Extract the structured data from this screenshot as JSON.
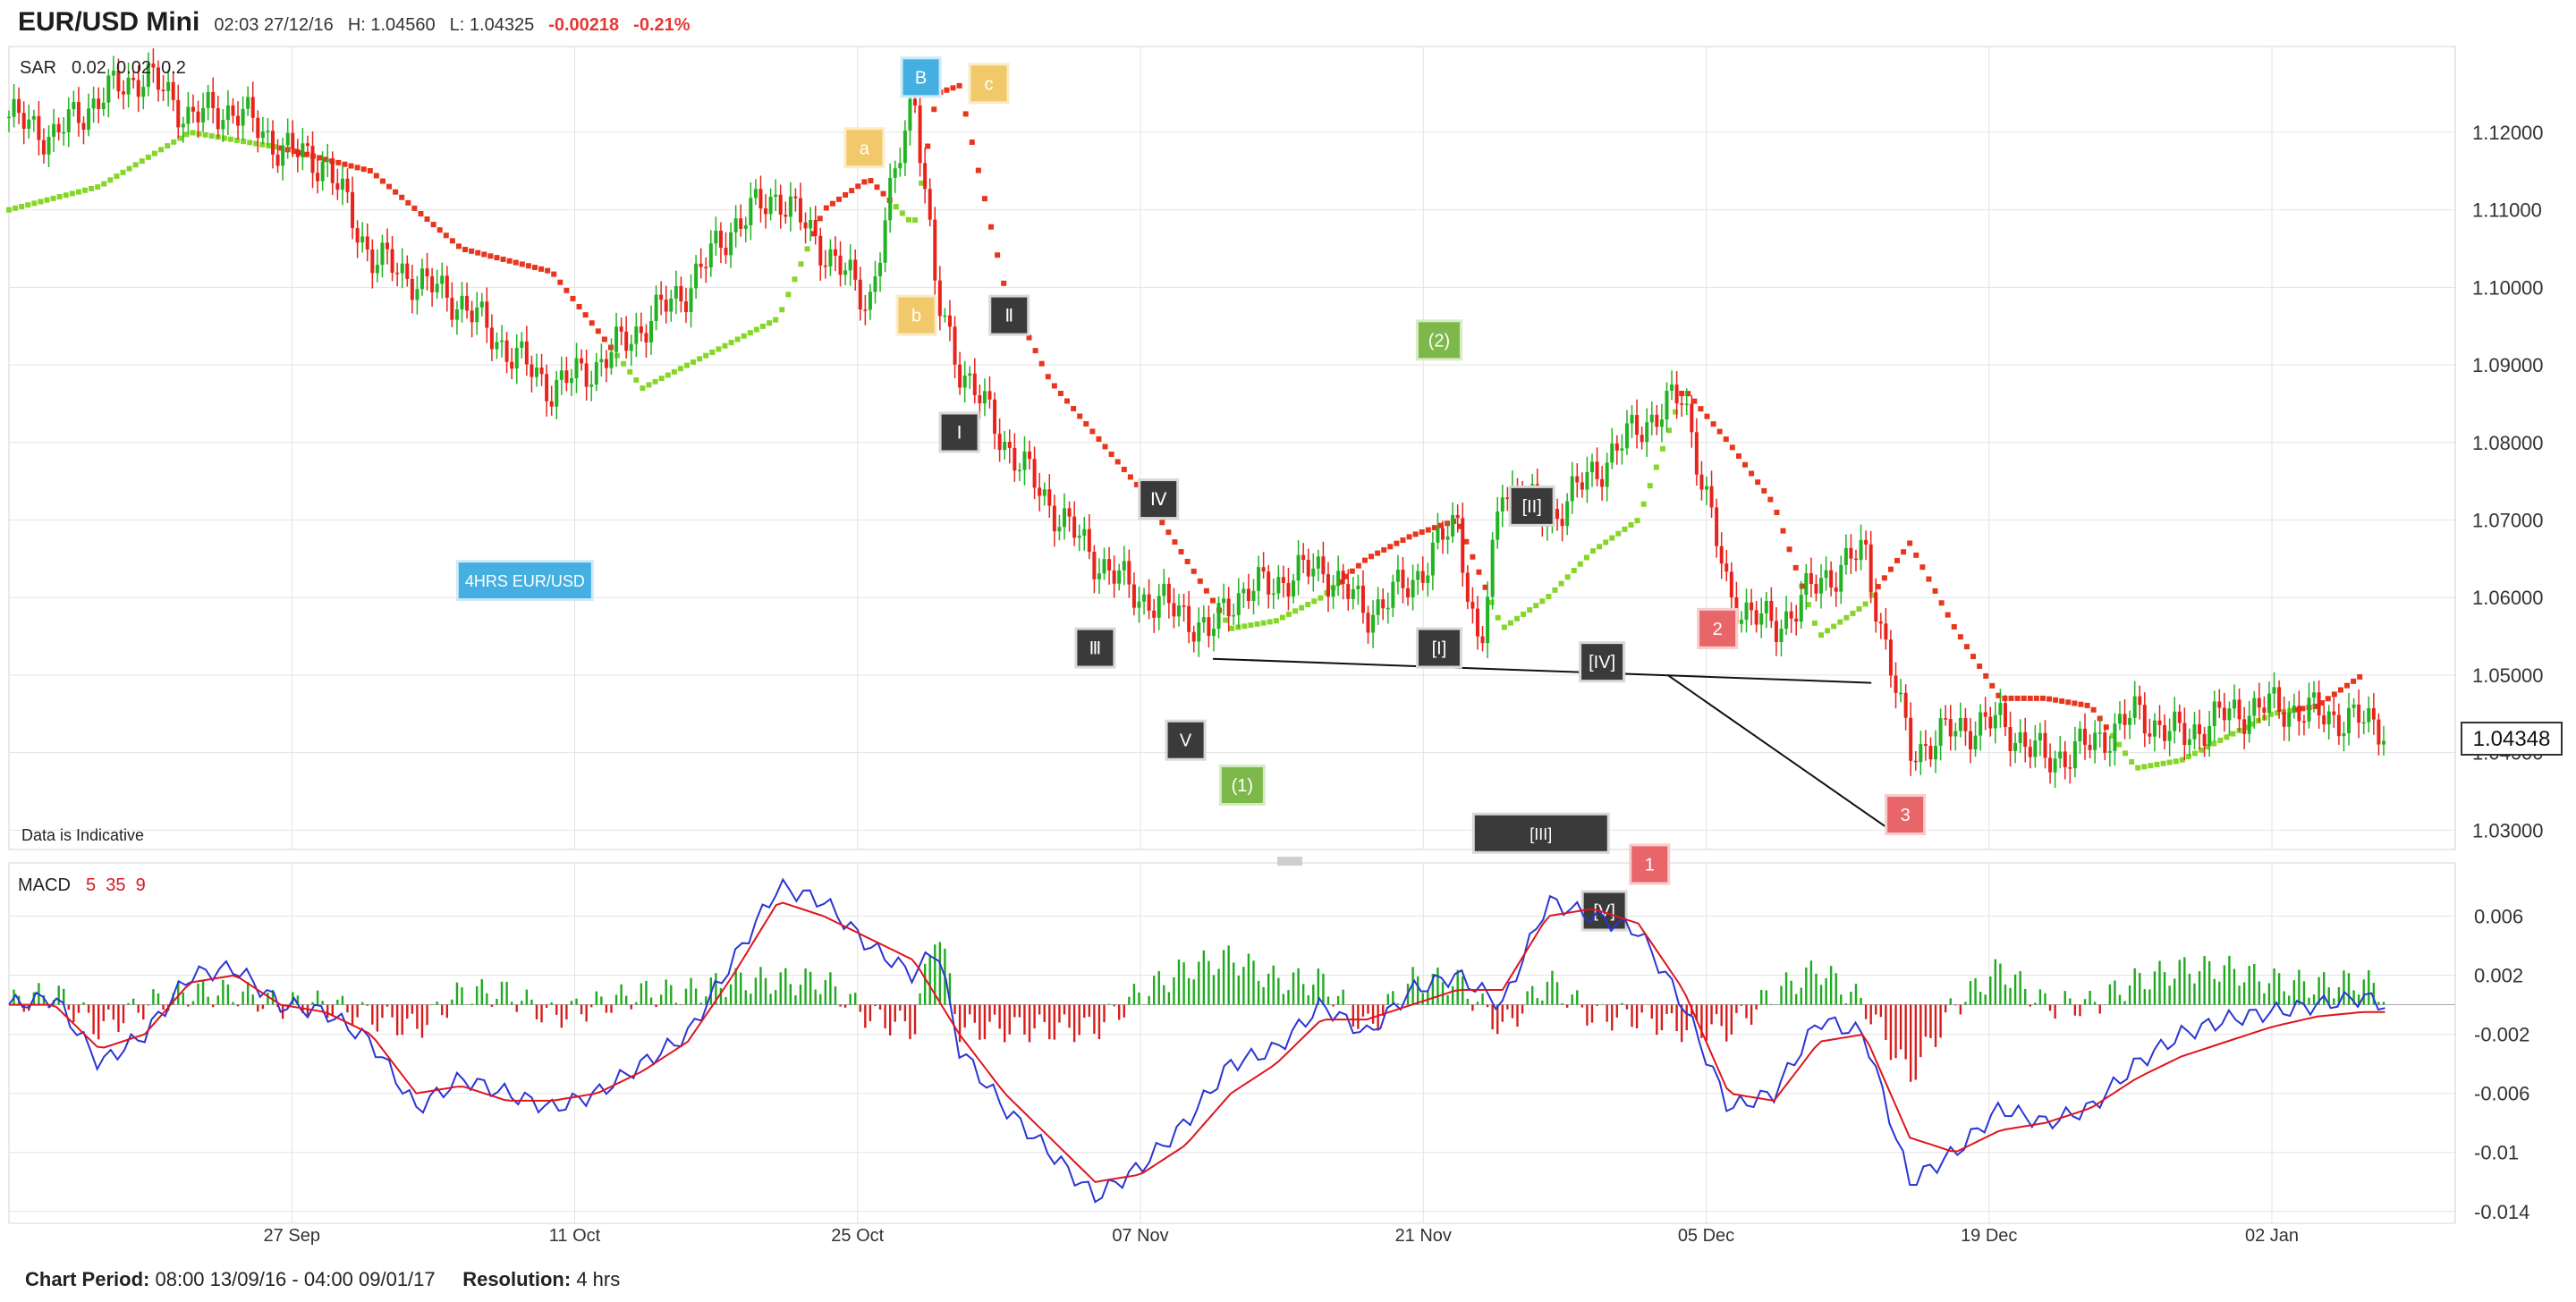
{
  "header": {
    "symbol": "EUR/USD Mini",
    "datetime": "02:03 27/12/16",
    "high": "H: 1.04560",
    "low": "L: 1.04325",
    "change": "-0.00218",
    "change_pct": "-0.21%"
  },
  "indicators": {
    "sar": {
      "name": "SAR",
      "params": "0.02  0.02  0.2"
    },
    "macd": {
      "name": "MACD",
      "params": "5  35  9"
    }
  },
  "disclaimer": "Data is Indicative",
  "price_label": "1.04348",
  "footer": {
    "period_label": "Chart Period:",
    "period_value": "08:00 13/09/16 - 04:00 09/01/17",
    "resolution_label": "Resolution:",
    "resolution_value": "4 hrs"
  },
  "colors": {
    "up": "#22b322",
    "down": "#e8231c",
    "sar_up": "#86d62a",
    "sar_down": "#e8361c",
    "macd_line": "#2b35d4",
    "signal_line": "#e0141e",
    "grid": "#e4e4e4",
    "axis_text": "#333333"
  },
  "chart_data": [
    {
      "type": "candlestick",
      "title": "EUR/USD Mini",
      "y_ticks": [
        "1.12000",
        "1.11000",
        "1.10000",
        "1.09000",
        "1.08000",
        "1.07000",
        "1.06000",
        "1.05000",
        "1.04000",
        "1.03000"
      ],
      "ylim": [
        1.0275,
        1.1306
      ],
      "x_ticks": [
        "27 Sep",
        "11 Oct",
        "25 Oct",
        "07 Nov",
        "21 Nov",
        "05 Dec",
        "19 Dec",
        "02 Jan"
      ],
      "grid": true,
      "series": [
        {
          "name": "Price (close path)",
          "x": [
            0,
            2,
            4,
            6,
            8,
            10,
            12,
            14,
            16,
            18,
            20,
            22,
            24,
            26,
            28,
            30,
            32,
            34,
            36,
            38,
            40,
            41,
            42,
            43,
            44,
            46,
            48,
            50,
            52,
            53,
            54,
            56,
            58,
            60,
            62,
            64,
            65,
            66,
            68,
            70,
            72,
            74,
            76,
            78,
            80,
            82,
            84,
            86,
            88,
            90,
            92,
            94,
            96,
            98,
            100,
            102,
            104,
            105
          ],
          "close": [
            1.122,
            1.1195,
            1.1245,
            1.1275,
            1.122,
            1.123,
            1.118,
            1.116,
            1.104,
            1.101,
            1.098,
            1.092,
            1.087,
            1.09,
            1.095,
            1.1,
            1.108,
            1.112,
            1.105,
            1.098,
            1.126,
            1.098,
            1.09,
            1.085,
            1.08,
            1.072,
            1.065,
            1.06,
            1.058,
            1.055,
            1.06,
            1.062,
            1.064,
            1.058,
            1.062,
            1.07,
            1.052,
            1.075,
            1.07,
            1.076,
            1.082,
            1.086,
            1.06,
            1.056,
            1.062,
            1.066,
            1.04,
            1.043,
            1.044,
            1.039,
            1.041,
            1.045,
            1.042,
            1.045,
            1.046,
            1.045,
            1.044,
            1.0435
          ]
        },
        {
          "name": "SAR",
          "x": [
            0,
            4,
            8,
            12,
            16,
            20,
            24,
            28,
            30,
            32,
            34,
            36,
            38,
            40,
            41,
            42,
            44,
            46,
            48,
            50,
            52,
            54,
            56,
            58,
            60,
            62,
            64,
            66,
            68,
            70,
            72,
            74,
            76,
            78,
            80,
            82,
            84,
            86,
            88,
            90,
            92,
            94,
            96,
            98,
            100,
            102,
            104
          ],
          "value": [
            1.11,
            1.113,
            1.12,
            1.118,
            1.115,
            1.105,
            1.102,
            1.087,
            1.09,
            1.093,
            1.096,
            1.11,
            1.114,
            1.108,
            1.125,
            1.126,
            1.1,
            1.088,
            1.081,
            1.074,
            1.065,
            1.056,
            1.057,
            1.06,
            1.065,
            1.068,
            1.07,
            1.056,
            1.06,
            1.066,
            1.07,
            1.087,
            1.08,
            1.072,
            1.055,
            1.059,
            1.067,
            1.056,
            1.047,
            1.047,
            1.046,
            1.038,
            1.039,
            1.042,
            1.045,
            1.046,
            1.05
          ]
        }
      ],
      "annotations": [
        {
          "label": "a",
          "x": 37.8,
          "y": 1.118,
          "style": "yellow"
        },
        {
          "label": "B",
          "x": 40.3,
          "y": 1.1271,
          "style": "blue"
        },
        {
          "label": "c",
          "x": 43.3,
          "y": 1.1263,
          "style": "yellow"
        },
        {
          "label": "b",
          "x": 40.1,
          "y": 1.0964,
          "style": "yellow"
        },
        {
          "label": "Ⅱ",
          "x": 44.2,
          "y": 1.0964,
          "style": "dark"
        },
        {
          "label": "Ⅰ",
          "x": 42.0,
          "y": 1.0813,
          "style": "dark"
        },
        {
          "label": "Ⅳ",
          "x": 50.8,
          "y": 1.0727,
          "style": "dark"
        },
        {
          "label": "Ⅲ",
          "x": 48.0,
          "y": 1.0535,
          "style": "dark"
        },
        {
          "label": "V",
          "x": 52.0,
          "y": 1.0416,
          "style": "dark"
        },
        {
          "label": "(1)",
          "x": 54.5,
          "y": 1.0358,
          "style": "green"
        },
        {
          "label": "(2)",
          "x": 63.2,
          "y": 1.0932,
          "style": "green"
        },
        {
          "label": "[I]",
          "x": 63.2,
          "y": 1.0535,
          "style": "dark"
        },
        {
          "label": "[II]",
          "x": 67.3,
          "y": 1.0718,
          "style": "dark"
        },
        {
          "label": "[III]",
          "x": 67.7,
          "y": 1.0296,
          "style": "dark"
        },
        {
          "label": "[IV]",
          "x": 70.4,
          "y": 1.0517,
          "style": "dark"
        },
        {
          "label": "[V]",
          "x": 70.5,
          "y": 1.0196,
          "style": "dark"
        },
        {
          "label": "1",
          "x": 72.5,
          "y": 1.0256,
          "style": "red"
        },
        {
          "label": "2",
          "x": 75.5,
          "y": 1.056,
          "style": "red"
        },
        {
          "label": "3",
          "x": 83.8,
          "y": 1.032,
          "style": "red"
        },
        {
          "label": "4HRS EUR/USD",
          "x": 22.8,
          "y": 1.0622,
          "style": "blue"
        }
      ],
      "trendlines": [
        {
          "x": [
            53.2,
            82.3
          ],
          "y": [
            1.0521,
            1.049
          ]
        },
        {
          "x": [
            73.3,
            82.9
          ],
          "y": [
            1.05,
            1.0305
          ]
        }
      ]
    },
    {
      "type": "line",
      "title": "MACD",
      "y_ticks": [
        "0.006",
        "0.002",
        "-0.002",
        "-0.006",
        "-0.01",
        "-0.014"
      ],
      "ylim": [
        -0.0148,
        0.0096
      ],
      "grid": true,
      "series": [
        {
          "name": "MACD",
          "x": [
            0,
            2,
            4,
            6,
            8,
            10,
            12,
            14,
            16,
            18,
            20,
            22,
            24,
            26,
            28,
            30,
            32,
            34,
            36,
            38,
            40,
            41,
            42,
            44,
            46,
            48,
            50,
            52,
            54,
            56,
            58,
            60,
            62,
            64,
            66,
            68,
            70,
            72,
            74,
            76,
            78,
            80,
            82,
            84,
            86,
            88,
            90,
            92,
            94,
            96,
            98,
            100,
            102,
            104,
            105
          ],
          "value": [
            0.0,
            0.0005,
            -0.004,
            -0.002,
            0.002,
            0.0025,
            0.0,
            -0.0005,
            -0.0025,
            -0.007,
            -0.005,
            -0.006,
            -0.007,
            -0.006,
            -0.004,
            -0.002,
            0.003,
            0.008,
            0.007,
            0.004,
            0.002,
            0.004,
            -0.003,
            -0.007,
            -0.01,
            -0.013,
            -0.011,
            -0.008,
            -0.004,
            -0.003,
            0.0,
            -0.002,
            0.001,
            0.002,
            0.0,
            0.007,
            0.006,
            0.005,
            0.0,
            -0.007,
            -0.006,
            -0.001,
            -0.002,
            -0.012,
            -0.01,
            -0.007,
            -0.008,
            -0.007,
            -0.004,
            -0.002,
            -0.001,
            -0.0005,
            0.0,
            0.0005,
            0.0
          ]
        },
        {
          "name": "Signal",
          "x": [
            0,
            2,
            4,
            6,
            8,
            10,
            12,
            14,
            16,
            18,
            20,
            22,
            24,
            26,
            28,
            30,
            32,
            34,
            36,
            38,
            40,
            42,
            44,
            46,
            48,
            50,
            52,
            54,
            56,
            58,
            60,
            62,
            64,
            66,
            68,
            70,
            72,
            74,
            76,
            78,
            80,
            82,
            84,
            86,
            88,
            90,
            92,
            94,
            96,
            98,
            100,
            102,
            104,
            105
          ],
          "value": [
            0.0,
            0.0,
            -0.003,
            -0.002,
            0.0015,
            0.002,
            0.0,
            -0.0005,
            -0.002,
            -0.006,
            -0.0055,
            -0.0065,
            -0.0065,
            -0.006,
            -0.0045,
            -0.0025,
            0.002,
            0.007,
            0.006,
            0.0045,
            0.003,
            -0.002,
            -0.006,
            -0.009,
            -0.012,
            -0.0115,
            -0.0095,
            -0.006,
            -0.004,
            -0.001,
            -0.001,
            0.0,
            0.001,
            0.001,
            0.006,
            0.0065,
            0.0055,
            0.001,
            -0.006,
            -0.0065,
            -0.0025,
            -0.002,
            -0.009,
            -0.01,
            -0.0085,
            -0.008,
            -0.007,
            -0.005,
            -0.0035,
            -0.0025,
            -0.0015,
            -0.0008,
            -0.0005,
            -0.0005
          ]
        }
      ]
    }
  ]
}
